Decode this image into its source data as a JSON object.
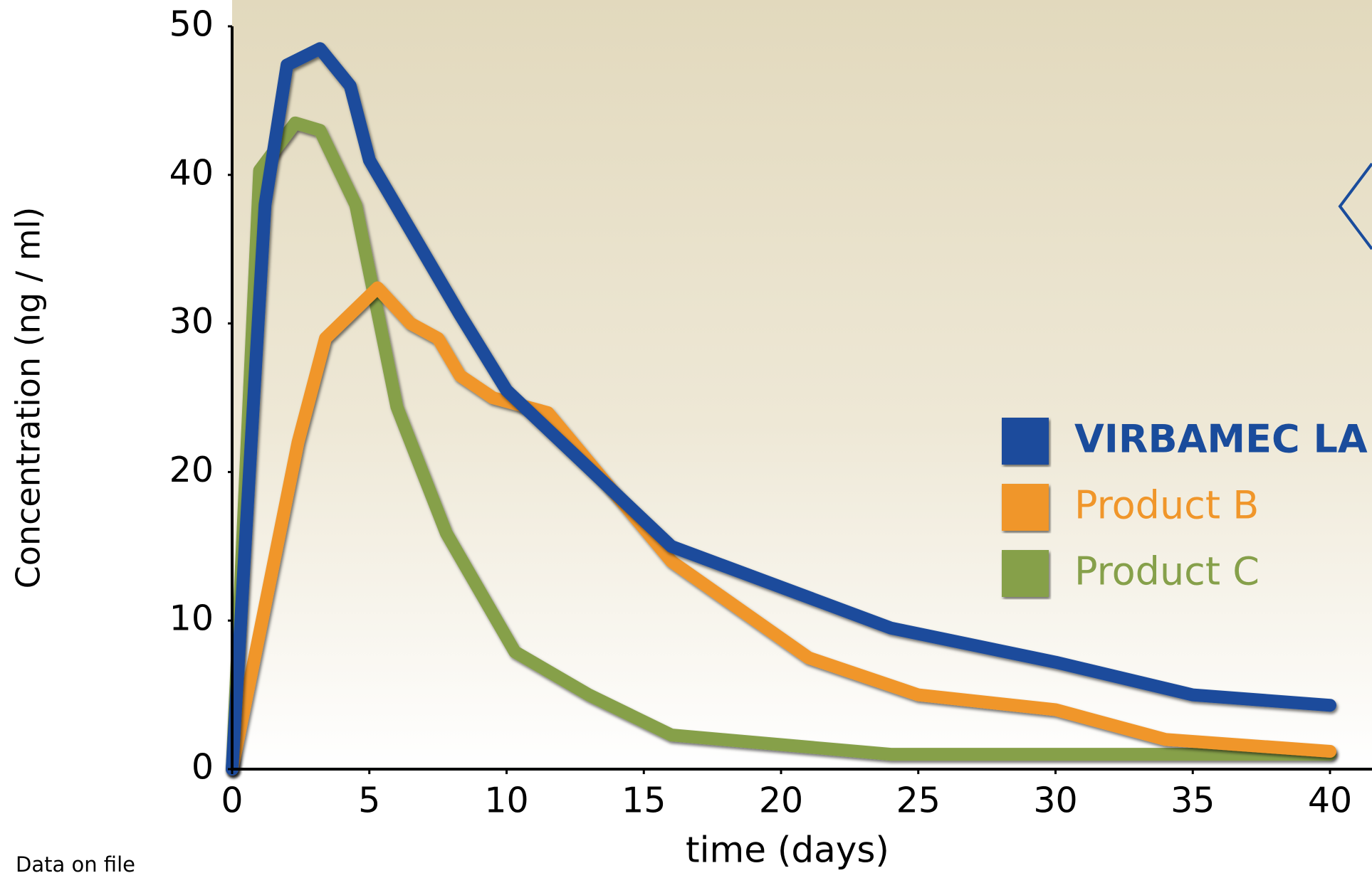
{
  "chart_data": {
    "type": "line",
    "x_label": "time (days)",
    "y_label": "Concentration (ng / ml)",
    "note": "Data on file",
    "xlim": [
      0,
      40
    ],
    "ylim": [
      0,
      50
    ],
    "xticks": [
      0,
      5,
      10,
      15,
      20,
      25,
      30,
      35,
      40
    ],
    "yticks": [
      0,
      10,
      20,
      30,
      40,
      50
    ],
    "grid": false,
    "legend": "right",
    "series": [
      {
        "name": "VIRBAMEC LA",
        "color": "#1a4c9c",
        "x": [
          0,
          1.2,
          2,
          3.2,
          4.3,
          5,
          8.3,
          10,
          16,
          24,
          30,
          35,
          40
        ],
        "values": [
          0,
          38,
          47.4,
          48.5,
          46,
          41,
          30.6,
          25.5,
          15,
          9.5,
          7.2,
          5,
          4.3
        ]
      },
      {
        "name": "Product B",
        "color": "#f0962a",
        "x": [
          0,
          2.4,
          3.4,
          5.3,
          6.5,
          7.5,
          8.3,
          9.5,
          11.5,
          16,
          21,
          25,
          30,
          34,
          40
        ],
        "values": [
          0,
          22,
          29,
          32.4,
          30,
          29,
          26.5,
          25,
          24,
          14,
          7.5,
          5,
          4,
          2,
          1.2
        ]
      },
      {
        "name": "Product C",
        "color": "#86a04a",
        "x": [
          0,
          1,
          2.3,
          3.2,
          4.5,
          6,
          7.8,
          10.3,
          13,
          16,
          24,
          40
        ],
        "values": [
          0,
          40.3,
          43.5,
          43,
          38,
          24.4,
          15.9,
          7.9,
          5,
          2.3,
          1,
          1
        ]
      }
    ]
  }
}
